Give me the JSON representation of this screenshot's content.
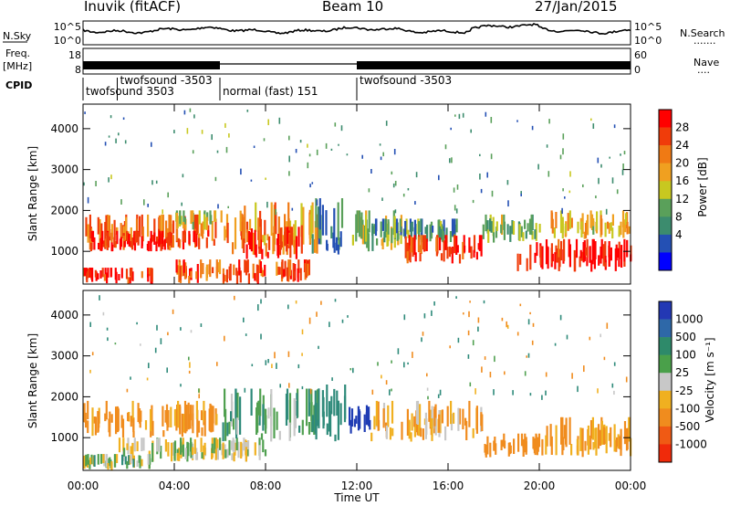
{
  "header": {
    "station": "Inuvik (fitACF)",
    "beam": "Beam 10",
    "date": "27/Jan/2015"
  },
  "noise_panel": {
    "left_label": "N.Sky",
    "left_ticks": [
      "10^5",
      "10^0"
    ],
    "right_ticks": [
      "10^5",
      "10^0"
    ],
    "right_label": "N.Search",
    "right_dots": "......."
  },
  "freq_panel": {
    "left_label_line1": "Freq.",
    "left_label_line2": "[MHz]",
    "left_ticks": [
      "18",
      "8"
    ],
    "right_ticks": [
      "60",
      "0"
    ],
    "right_label": "Nave",
    "right_dots": "....",
    "cpid_label": "CPID"
  },
  "cpid_segments": [
    {
      "label": "twofsound 3503",
      "start": 0,
      "end": 6
    },
    {
      "label": "twofsound -3503",
      "start": 1.5,
      "end": 6
    },
    {
      "label": "normal (fast) 151",
      "start": 6,
      "end": 12
    },
    {
      "label": "twofsound -3503",
      "start": 12,
      "end": 24
    }
  ],
  "x_axis": {
    "ticks": [
      "00:00",
      "04:00",
      "08:00",
      "12:00",
      "16:00",
      "20:00",
      "00:00"
    ],
    "label": "Time UT",
    "range_hours": [
      0,
      24
    ]
  },
  "power_panel": {
    "ylabel": "Slant Range [km]",
    "yticks": [
      "1000",
      "2000",
      "3000",
      "4000"
    ],
    "colorbar_label": "Power [dB]",
    "colorbar_ticks": [
      "28",
      "24",
      "20",
      "16",
      "12",
      "8",
      "4"
    ]
  },
  "velocity_panel": {
    "ylabel": "Slant Range [km]",
    "yticks": [
      "1000",
      "2000",
      "3000",
      "4000"
    ],
    "colorbar_label": "Velocity [m s⁻¹]",
    "colorbar_ticks": [
      "1000",
      "500",
      "100",
      "25",
      "-25",
      "-100",
      "-500",
      "-1000"
    ]
  },
  "chart_data": [
    {
      "type": "heatmap",
      "name_hint": "power",
      "x_unit": "hours UT",
      "y_unit": "km",
      "ylim": [
        200,
        4600
      ],
      "xlim": [
        0,
        24
      ],
      "colorscale": [
        "#0000ff",
        "#2450b4",
        "#3c8c6e",
        "#5aa05a",
        "#c8c820",
        "#f0a020",
        "#f07a14",
        "#f03c0a",
        "#ff0000"
      ],
      "value_range_dB": [
        0,
        30
      ],
      "regions": [
        {
          "t": [
            0,
            6
          ],
          "r": [
            1000,
            1900
          ],
          "v": 22
        },
        {
          "t": [
            0.3,
            5
          ],
          "r": [
            1000,
            1500
          ],
          "v": 28
        },
        {
          "t": [
            4,
            6.1
          ],
          "r": [
            1500,
            2000
          ],
          "v": 15
        },
        {
          "t": [
            6.1,
            10.3
          ],
          "r": [
            900,
            2200
          ],
          "v": 20
        },
        {
          "t": [
            7,
            9.5
          ],
          "r": [
            800,
            1600
          ],
          "v": 27
        },
        {
          "t": [
            10,
            11.5
          ],
          "r": [
            900,
            2300
          ],
          "v": 8
        },
        {
          "t": [
            11.6,
            14
          ],
          "r": [
            1000,
            2000
          ],
          "v": 14
        },
        {
          "t": [
            12.5,
            16.5
          ],
          "r": [
            1200,
            1800
          ],
          "v": 9
        },
        {
          "t": [
            14,
            17.5
          ],
          "r": [
            700,
            1400
          ],
          "v": 26
        },
        {
          "t": [
            17.5,
            20
          ],
          "r": [
            1200,
            1900
          ],
          "v": 12
        },
        {
          "t": [
            19,
            24
          ],
          "r": [
            500,
            1300
          ],
          "v": 28
        },
        {
          "t": [
            20.5,
            24
          ],
          "r": [
            1300,
            2000
          ],
          "v": 18
        },
        {
          "t": [
            0,
            3
          ],
          "r": [
            200,
            600
          ],
          "v": 27
        },
        {
          "t": [
            4,
            10
          ],
          "r": [
            200,
            800
          ],
          "v": 24
        }
      ]
    },
    {
      "type": "heatmap",
      "name_hint": "velocity",
      "x_unit": "hours UT",
      "y_unit": "km",
      "ylim": [
        200,
        4600
      ],
      "xlim": [
        0,
        24
      ],
      "value_range": [
        -1000,
        1000
      ],
      "regions": [
        {
          "t": [
            0,
            6
          ],
          "r": [
            1000,
            1900
          ],
          "v": -150
        },
        {
          "t": [
            1.5,
            6
          ],
          "r": [
            400,
            1000
          ],
          "v": 0
        },
        {
          "t": [
            6,
            8
          ],
          "r": [
            400,
            1000
          ],
          "v": 0
        },
        {
          "t": [
            6.1,
            10.3
          ],
          "r": [
            900,
            2200
          ],
          "v": 80
        },
        {
          "t": [
            10,
            11.5
          ],
          "r": [
            900,
            2300
          ],
          "v": 300
        },
        {
          "t": [
            11.6,
            12.6
          ],
          "r": [
            1100,
            1800
          ],
          "v": 700
        },
        {
          "t": [
            12.6,
            17.5
          ],
          "r": [
            900,
            1900
          ],
          "v": -80
        },
        {
          "t": [
            17.5,
            20
          ],
          "r": [
            500,
            1100
          ],
          "v": -200
        },
        {
          "t": [
            20,
            24
          ],
          "r": [
            500,
            1500
          ],
          "v": -150
        },
        {
          "t": [
            0,
            3
          ],
          "r": [
            200,
            600
          ],
          "v": 20
        }
      ]
    }
  ]
}
